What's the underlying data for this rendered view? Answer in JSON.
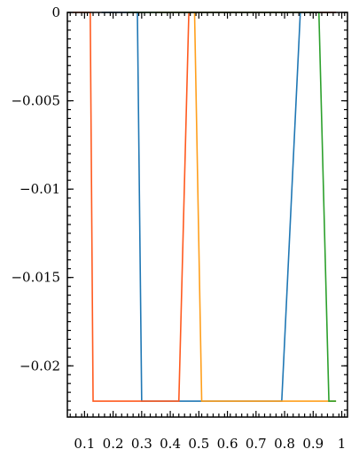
{
  "chart_data": {
    "type": "line",
    "title": "",
    "xlabel": "",
    "ylabel": "",
    "xlim": [
      0.04,
      1.02
    ],
    "ylim": [
      -0.0229,
      0.0
    ],
    "grid": false,
    "x_ticks": [
      {
        "value": 0.1,
        "label": "0.1"
      },
      {
        "value": 0.2,
        "label": "0.2"
      },
      {
        "value": 0.3,
        "label": "0.3"
      },
      {
        "value": 0.4,
        "label": "0.4"
      },
      {
        "value": 0.5,
        "label": "0.5"
      },
      {
        "value": 0.6,
        "label": "0.6"
      },
      {
        "value": 0.7,
        "label": "0.7"
      },
      {
        "value": 0.8,
        "label": "0.8"
      },
      {
        "value": 0.9,
        "label": "0.9"
      },
      {
        "value": 1.0,
        "label": "1"
      }
    ],
    "y_ticks": [
      {
        "value": 0.0,
        "label": "0"
      },
      {
        "value": -0.005,
        "label": "−0.005"
      },
      {
        "value": -0.01,
        "label": "−0.01"
      },
      {
        "value": -0.015,
        "label": "−0.015"
      },
      {
        "value": -0.02,
        "label": "−0.02"
      }
    ],
    "series": [
      {
        "color": "#1f77b4",
        "x": [
          0.16,
          0.285,
          0.3,
          0.79,
          0.855,
          0.98
        ],
        "y": [
          0.0,
          0.0,
          -0.022,
          -0.022,
          0.0,
          0.0
        ]
      },
      {
        "color": "#ff5a1f",
        "x": [
          0.06,
          0.12,
          0.13,
          0.43,
          0.465,
          0.95,
          0.98
        ],
        "y": [
          0.0,
          0.0,
          -0.022,
          -0.022,
          0.0,
          0.0,
          0.0
        ]
      },
      {
        "color": "#ff9f1c",
        "x": [
          0.35,
          0.485,
          0.51,
          0.92,
          0.98
        ],
        "y": [
          0.0,
          0.0,
          -0.022,
          -0.022,
          -0.022
        ]
      },
      {
        "color": "#2ca02c",
        "x": [
          0.25,
          0.92,
          0.955,
          0.98
        ],
        "y": [
          0.0,
          0.0,
          -0.022,
          -0.022
        ]
      }
    ]
  }
}
